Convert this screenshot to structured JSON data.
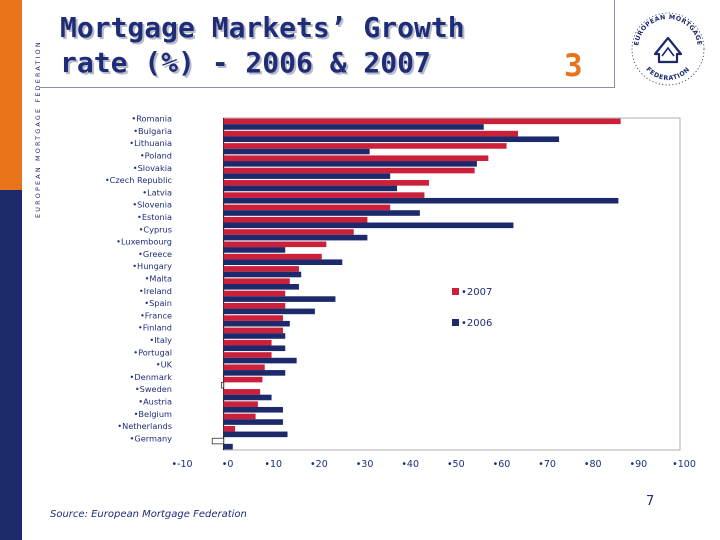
{
  "slide": {
    "title_line1": "Mortgage Markets’ Growth",
    "title_line2": "rate (%) - 2006 & 2007",
    "slide_number": "3",
    "side_text": "EUROPEAN MORTGAGE FEDERATION",
    "logo_text_top": "EUROPEAN MORTGAGE",
    "logo_text_bottom": "FEDERATION",
    "page_number": "7",
    "source": "Source: European Mortgage Federation"
  },
  "colors": {
    "series_2007": "#cc1f3a",
    "series_2006": "#1c2a6b",
    "accent_orange": "#e8731a",
    "title_navy": "#1f2d78"
  },
  "chart_data": {
    "type": "bar",
    "orientation": "horizontal",
    "title": "",
    "xlabel": "",
    "ylabel": "",
    "xlim": [
      -10,
      100
    ],
    "x_ticks": [
      "-10",
      "0",
      "10",
      "20",
      "30",
      "40",
      "50",
      "60",
      "70",
      "80",
      "90",
      "100"
    ],
    "x_tick_values": [
      -10,
      0,
      10,
      20,
      30,
      40,
      50,
      60,
      70,
      80,
      90,
      100
    ],
    "legend_position": "center-right",
    "categories": [
      "Romania",
      "Bulgaria",
      "Lithuania",
      "Poland",
      "Slovakia",
      "Czech Republic",
      "Latvia",
      "Slovenia",
      "Estonia",
      "Cyprus",
      "Luxembourg",
      "Greece",
      "Hungary",
      "Malta",
      "Ireland",
      "Spain",
      "France",
      "Finland",
      "Italy",
      "Portugal",
      "UK",
      "Denmark",
      "Sweden",
      "Austria",
      "Belgium",
      "Netherlands",
      "Germany"
    ],
    "series": [
      {
        "name": "2007",
        "values": [
          87,
          64.5,
          62,
          58,
          55,
          45,
          44,
          36.5,
          31.5,
          28.5,
          22.5,
          21.5,
          16.5,
          14.5,
          13.5,
          13.5,
          13,
          13,
          10.5,
          10.5,
          9,
          8.5,
          8,
          7.5,
          7,
          2.5,
          -2.5
        ]
      },
      {
        "name": "2006",
        "values": [
          57,
          73.5,
          32,
          55.5,
          36.5,
          38,
          86.5,
          43,
          63.5,
          31.5,
          13.5,
          26,
          17,
          16.5,
          24.5,
          20,
          14.5,
          13.5,
          13.5,
          16,
          13.5,
          -0.5,
          10.5,
          13,
          13,
          14,
          2
        ]
      }
    ]
  }
}
